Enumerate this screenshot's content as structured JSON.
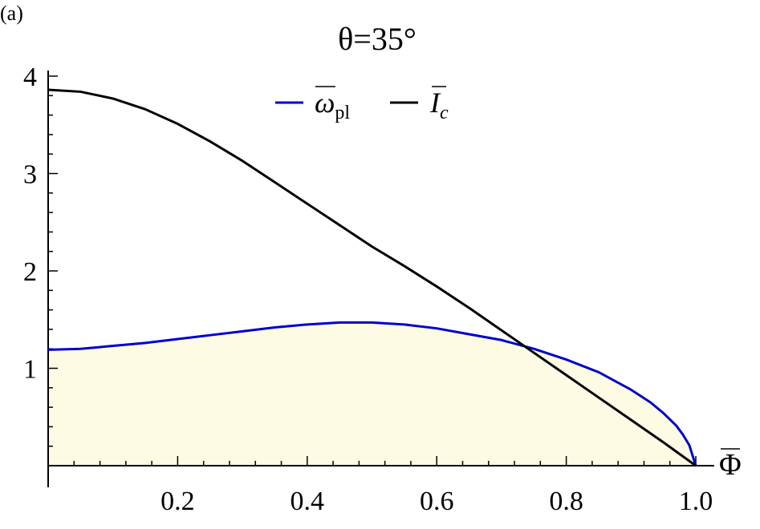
{
  "chart_data": {
    "type": "area",
    "panel_label": "(a)",
    "title": "θ=35°",
    "xlabel": "Φ",
    "ylabel": "",
    "xlim": [
      0,
      1.0
    ],
    "ylim": [
      0,
      4
    ],
    "x_ticks": [
      0.2,
      0.4,
      0.6,
      0.8,
      1.0
    ],
    "x_tick_labels": [
      "0.2",
      "0.4",
      "0.6",
      "0.8",
      "1.0"
    ],
    "y_ticks": [
      1,
      2,
      3,
      4
    ],
    "y_tick_labels": [
      "1",
      "2",
      "3",
      "4"
    ],
    "legend_placement": "top-center",
    "grid": false,
    "fill_under": "omega_pl",
    "fill_color": "#fdfbe3",
    "series": [
      {
        "name": "ω",
        "subscript": "pl",
        "color": "#0000cc",
        "x": [
          0.0,
          0.05,
          0.1,
          0.15,
          0.2,
          0.25,
          0.3,
          0.35,
          0.4,
          0.45,
          0.5,
          0.55,
          0.6,
          0.65,
          0.7,
          0.75,
          0.8,
          0.85,
          0.9,
          0.93,
          0.95,
          0.97,
          0.98,
          0.99,
          1.0
        ],
        "y": [
          1.19,
          1.2,
          1.23,
          1.26,
          1.3,
          1.34,
          1.38,
          1.42,
          1.45,
          1.47,
          1.47,
          1.45,
          1.41,
          1.35,
          1.29,
          1.2,
          1.09,
          0.96,
          0.78,
          0.65,
          0.54,
          0.41,
          0.32,
          0.21,
          0.0
        ]
      },
      {
        "name": "I",
        "subscript": "c",
        "color": "#000000",
        "x": [
          0.0,
          0.05,
          0.1,
          0.15,
          0.2,
          0.25,
          0.3,
          0.35,
          0.4,
          0.45,
          0.5,
          0.55,
          0.6,
          0.65,
          0.7,
          0.75,
          0.8,
          0.85,
          0.9,
          0.95,
          1.0
        ],
        "y": [
          3.86,
          3.84,
          3.77,
          3.66,
          3.51,
          3.33,
          3.13,
          2.91,
          2.69,
          2.47,
          2.25,
          2.05,
          1.84,
          1.62,
          1.39,
          1.16,
          0.93,
          0.7,
          0.47,
          0.24,
          0.0
        ]
      }
    ]
  }
}
